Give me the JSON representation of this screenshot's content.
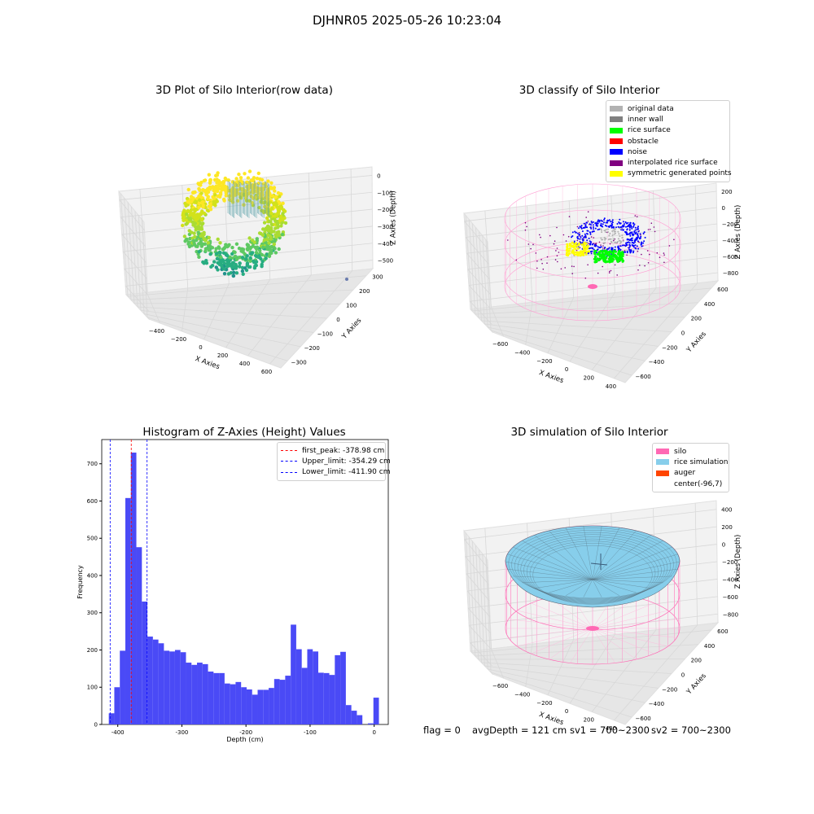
{
  "suptitle": "DJHNR05 2025-05-26 10:23:04",
  "footer": {
    "flag": "flag = 0",
    "avg_depth": "avgDepth = 121 cm",
    "sv1": "sv1 = 700~2300",
    "sv2": "sv2 = 700~2300"
  },
  "chart_data": [
    {
      "type": "scatter",
      "title": "3D Plot of Silo Interior(row data)",
      "xlabel": "X Axies",
      "ylabel": "Y Axies",
      "zlabel": "Z Axies (Depth)",
      "x_ticks": [
        "−400",
        "−200",
        "0",
        "200",
        "400",
        "600"
      ],
      "y_ticks": [
        "300",
        "200",
        "100",
        "0",
        "−100",
        "−200",
        "−300"
      ],
      "z_ticks": [
        "0",
        "−100",
        "−200",
        "−300",
        "−400",
        "−500"
      ],
      "xlim": [
        -450,
        650
      ],
      "ylim": [
        -330,
        330
      ],
      "zlim": [
        -570,
        0
      ],
      "colormap": "viridis",
      "grid": true
    },
    {
      "type": "scatter",
      "title": "3D classify of Silo Interior",
      "xlabel": "X Axies",
      "ylabel": "Y Axies",
      "zlabel": "Z Axies (Depth)",
      "x_ticks": [
        "−600",
        "−400",
        "−200",
        "0",
        "200",
        "400"
      ],
      "y_ticks": [
        "600",
        "400",
        "200",
        "0",
        "−200",
        "−400",
        "−600"
      ],
      "z_ticks": [
        "200",
        "0",
        "−200",
        "−400",
        "−600",
        "−800"
      ],
      "legend_position": "top-right",
      "legend": [
        {
          "label": "original data",
          "color": "#b2b2b2"
        },
        {
          "label": "inner wall",
          "color": "#808080"
        },
        {
          "label": "rice surface",
          "color": "#00ff00"
        },
        {
          "label": "obstacle",
          "color": "#ff0000"
        },
        {
          "label": "noise",
          "color": "#0000ff"
        },
        {
          "label": "interpolated rice surface",
          "color": "#800080"
        },
        {
          "label": "symmetric generated points",
          "color": "#ffff00"
        }
      ],
      "grid": true
    },
    {
      "type": "bar",
      "title": "Histogram of Z-Axies (Height) Values",
      "xlabel": "Depth (cm)",
      "ylabel": "Frequency",
      "xlim": [
        -425,
        22
      ],
      "ylim": [
        0,
        765
      ],
      "x_ticks": [
        -400,
        -300,
        -200,
        -100,
        0
      ],
      "y_ticks": [
        0,
        100,
        200,
        300,
        400,
        500,
        600,
        700
      ],
      "bin_width": 8.6,
      "bin_start": -414,
      "values": [
        30,
        100,
        198,
        608,
        730,
        476,
        330,
        236,
        228,
        218,
        198,
        196,
        200,
        194,
        166,
        160,
        166,
        162,
        142,
        138,
        138,
        110,
        108,
        114,
        100,
        94,
        80,
        93,
        93,
        98,
        122,
        120,
        131,
        268,
        202,
        152,
        202,
        196,
        139,
        138,
        133,
        186,
        195,
        52,
        37,
        25,
        0,
        3,
        72
      ],
      "bar_color": "#4a4af6",
      "legend_position": "top-right",
      "legend": [
        {
          "label": "first_peak: -378.98 cm",
          "color": "#ff0000"
        },
        {
          "label": "Upper_limit: -354.29 cm",
          "color": "#0000ff"
        },
        {
          "label": "Lower_limit: -411.90 cm",
          "color": "#0000ff"
        }
      ],
      "vlines": [
        -378.98,
        -354.29,
        -411.9
      ],
      "grid": false
    },
    {
      "type": "area",
      "title": "3D simulation of Silo Interior",
      "xlabel": "X Axies",
      "ylabel": "Y Axies",
      "zlabel": "Z Axies (Depth)",
      "x_ticks": [
        "−600",
        "−400",
        "−200",
        "0",
        "200",
        "400"
      ],
      "y_ticks": [
        "600",
        "400",
        "200",
        "0",
        "−200",
        "−400",
        "−600"
      ],
      "z_ticks": [
        "400",
        "200",
        "0",
        "−200",
        "−400",
        "−600",
        "−800"
      ],
      "legend_position": "top-right",
      "legend": [
        {
          "label": "silo",
          "color": "#ff69b4"
        },
        {
          "label": "rice simulation",
          "color": "#87ceeb"
        },
        {
          "label": "auger",
          "color": "#ff4500"
        },
        {
          "label": "center(-96,7)",
          "color": "none"
        }
      ],
      "grid": true
    }
  ]
}
